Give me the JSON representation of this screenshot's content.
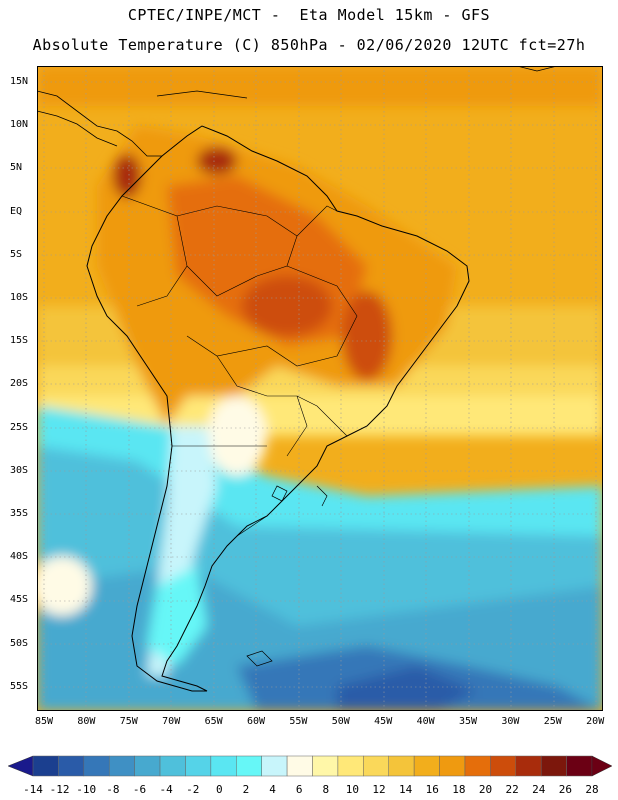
{
  "titles": {
    "line1": "CPTEC/INPE/MCT -  Eta Model 15km - GFS",
    "line2": "Absolute Temperature (C) 850hPa - 02/06/2020 12UTC fct=27h"
  },
  "lat_labels": [
    "15N",
    "10N",
    "5N",
    "EQ",
    "5S",
    "10S",
    "15S",
    "20S",
    "25S",
    "30S",
    "35S",
    "40S",
    "45S",
    "50S",
    "55S"
  ],
  "lon_labels": [
    "85W",
    "80W",
    "75W",
    "70W",
    "65W",
    "60W",
    "55W",
    "50W",
    "45W",
    "40W",
    "35W",
    "30W",
    "25W",
    "20W"
  ],
  "colorbar": {
    "labels": [
      "-14",
      "-12",
      "-10",
      "-8",
      "-6",
      "-4",
      "-2",
      "0",
      "2",
      "4",
      "6",
      "8",
      "10",
      "12",
      "14",
      "16",
      "18",
      "20",
      "22",
      "24",
      "26",
      "28"
    ],
    "colors": [
      "#1b3f8f",
      "#1b3f8f",
      "#2a5ba8",
      "#3577b8",
      "#3f90c4",
      "#47a9cf",
      "#4fc0db",
      "#55d3e8",
      "#5ae6f2",
      "#66f7f7",
      "#c8f5fb",
      "#fffbe6",
      "#fff7a8",
      "#ffe878",
      "#fad85a",
      "#f4c43a",
      "#f2ae1c",
      "#ef9a10",
      "#e56e0b",
      "#cd4d0b",
      "#a82c0c",
      "#7c170c",
      "#6b0014"
    ],
    "low_arrow": "#1a1a8c",
    "high_arrow": "#6b0014"
  },
  "colors": {
    "ocean_warm": "#f2ae1c",
    "land_hot": "#e56e0b",
    "cold_south": "#4fc0db"
  }
}
